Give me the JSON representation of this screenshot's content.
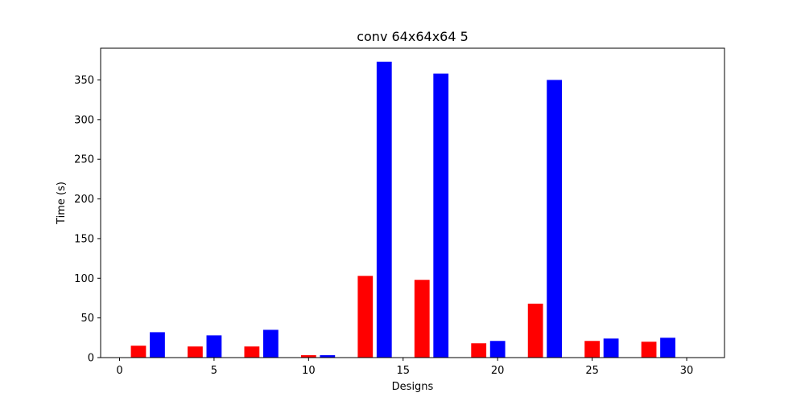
{
  "chart_data": {
    "type": "bar",
    "title": "conv 64x64x64 5",
    "xlabel": "Designs",
    "ylabel": "Time (s)",
    "xlim": [
      -1,
      32
    ],
    "ylim": [
      0,
      390
    ],
    "xticks": [
      0,
      5,
      10,
      15,
      20,
      25,
      30
    ],
    "yticks": [
      0,
      50,
      100,
      150,
      200,
      250,
      300,
      350
    ],
    "bar_width": 0.8,
    "grid": false,
    "series": [
      {
        "color": "#ff0000",
        "x": [
          1,
          4,
          7,
          10,
          13,
          16,
          19,
          22,
          25,
          28
        ],
        "values": [
          15,
          14,
          14,
          3,
          103,
          98,
          18,
          68,
          21,
          20
        ]
      },
      {
        "color": "#0000ff",
        "x": [
          2,
          5,
          8,
          11,
          14,
          17,
          20,
          23,
          26,
          29
        ],
        "values": [
          32,
          28,
          35,
          3,
          373,
          358,
          21,
          350,
          24,
          25
        ]
      }
    ]
  }
}
